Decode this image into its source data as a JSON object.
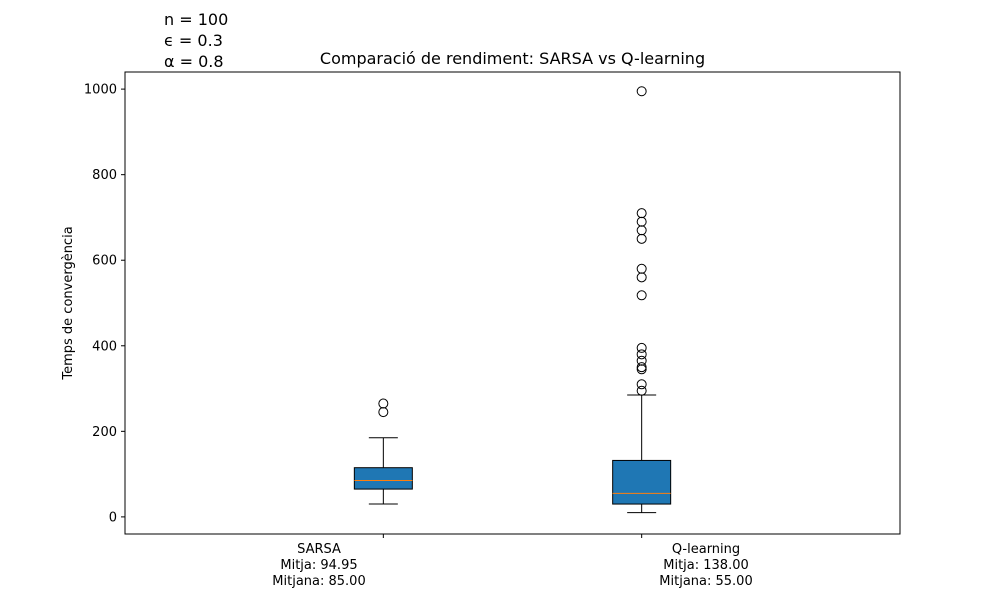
{
  "annotations": [
    "n = 100",
    "ϵ = 0.3",
    "α = 0.8"
  ],
  "chart_data": {
    "type": "boxplot",
    "title": "Comparació de rendiment: SARSA vs Q-learning",
    "xlabel": "",
    "ylabel": "Temps de convergència",
    "ylim": [
      -40,
      1040
    ],
    "yticks": [
      0,
      200,
      400,
      600,
      800,
      1000
    ],
    "grid": false,
    "box_color": "#1f77b4",
    "median_color": "#ff7f0e",
    "categories": [
      {
        "name": "SARSA",
        "stats": [
          "Mitja: 94.95",
          "Mitjana: 85.00"
        ],
        "q1": 65,
        "median": 85,
        "q3": 115,
        "whisker_low": 30,
        "whisker_high": 185,
        "outliers": [
          245,
          265
        ]
      },
      {
        "name": "Q-learning",
        "stats": [
          "Mitja: 138.00",
          "Mitjana: 55.00"
        ],
        "q1": 30,
        "median": 55,
        "q3": 132,
        "whisker_low": 10,
        "whisker_high": 285,
        "outliers": [
          295,
          310,
          345,
          350,
          365,
          380,
          395,
          518,
          560,
          580,
          650,
          670,
          690,
          710,
          995
        ]
      }
    ]
  }
}
